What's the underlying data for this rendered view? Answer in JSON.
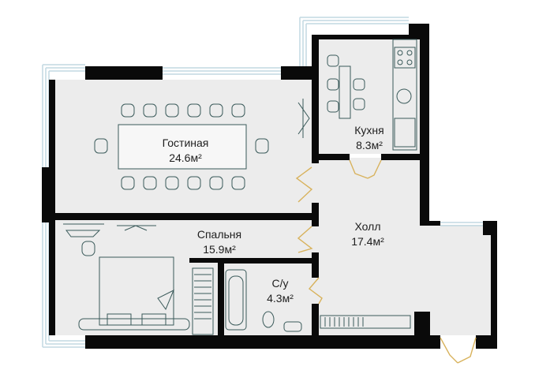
{
  "plan": {
    "colors": {
      "wall": "#0a0a0a",
      "floor": "#ececec",
      "window": "#c2d9e2",
      "furniture_line": "#3a5a5a",
      "door_line": "#d8b25c"
    },
    "rooms": {
      "living": {
        "name": "Гостиная",
        "area": "24.6м²"
      },
      "kitchen": {
        "name": "Кухня",
        "area": "8.3м²"
      },
      "bedroom": {
        "name": "Спальня",
        "area": "15.9м²"
      },
      "hall": {
        "name": "Холл",
        "area": "17.4м²"
      },
      "bath": {
        "name": "С/у",
        "area": "4.3м²"
      }
    }
  }
}
